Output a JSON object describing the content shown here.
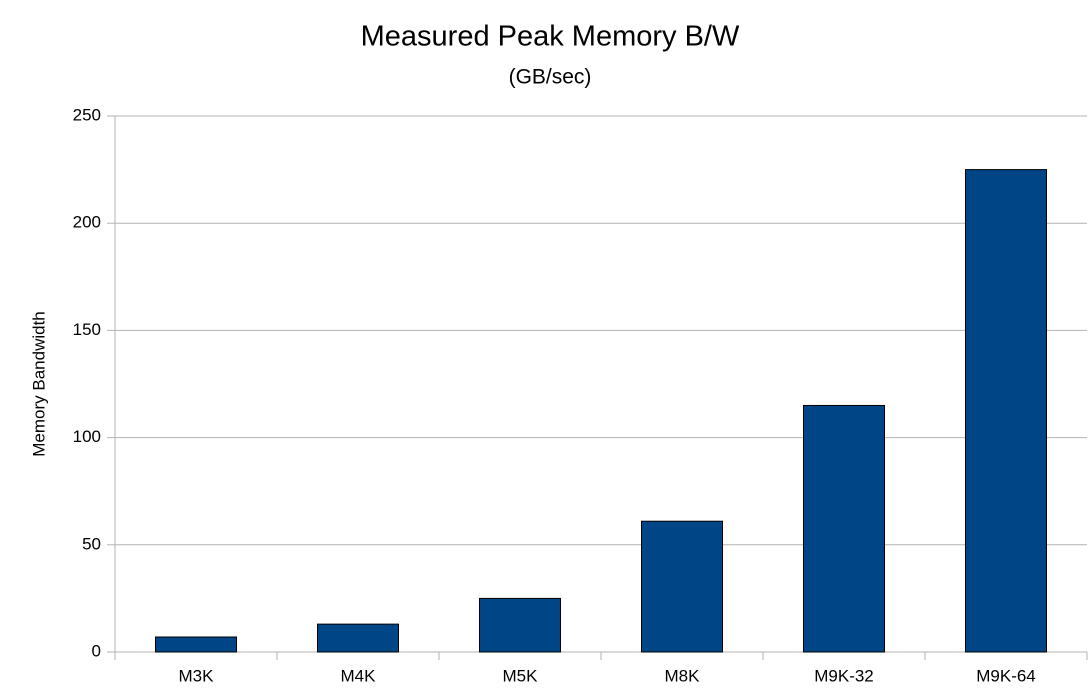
{
  "chart_data": {
    "type": "bar",
    "title": "Measured Peak Memory B/W",
    "subtitle": "(GB/sec)",
    "y_label": "Memory Bandwidth",
    "categories": [
      "M3K",
      "M4K",
      "M5K",
      "M8K",
      "M9K-32",
      "M9K-64"
    ],
    "values": [
      7,
      13,
      25,
      61,
      115,
      225
    ],
    "color": "#004586",
    "ylim": [
      0,
      250
    ],
    "yticks": [
      0,
      50,
      100,
      150,
      200,
      250
    ],
    "grid": true
  }
}
